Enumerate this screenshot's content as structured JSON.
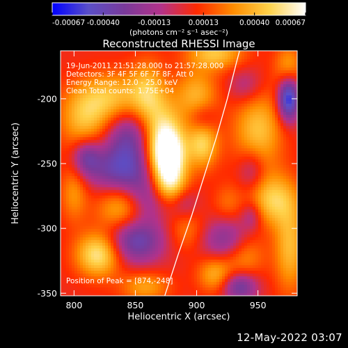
{
  "chart_data": {
    "type": "heatmap",
    "title": "Reconstructed RHESSI Image",
    "xlabel": "Heliocentric X (arcsec)",
    "ylabel": "Heliocentric Y (arcsec)",
    "xlim": [
      789,
      982
    ],
    "ylim": [
      -352,
      -163
    ],
    "x_ticks": [
      800,
      850,
      900,
      950
    ],
    "x_tick_labels": [
      "800",
      "850",
      "900",
      "950"
    ],
    "y_ticks": [
      -200,
      -250,
      -300,
      -350
    ],
    "y_tick_labels": [
      "-200",
      "-250",
      "-300",
      "-350"
    ],
    "colorbar": {
      "range": [
        -0.00067,
        0.00067
      ],
      "tick_values": [
        -0.00067,
        -0.0004,
        -0.00013,
        0.00013,
        0.0004,
        0.00067
      ],
      "tick_labels": [
        "-0.00067",
        "-0.00040",
        "-0.00013",
        "0.00013",
        "0.00040",
        "0.00067"
      ],
      "units_label": "(photons cm⁻² s⁻¹ asec⁻²)",
      "colors": [
        "#0000ff",
        "#5a4fc8",
        "#7a3a9a",
        "#b2328a",
        "#ff2a00",
        "#ff8c00",
        "#ffd24a",
        "#ffffff"
      ]
    },
    "annotations": [
      "19-Jun-2011 21:51:28.000 to 21:57:28.000",
      "Detectors: 3F 4F 5F 6F 7F 8F, Att 0",
      "Energy Range: 12.0 - 25.0 keV",
      "Clean     Total counts: 1.75E+04"
    ],
    "peak_label": "Position of Peak = [874,-248]",
    "peak": [
      874,
      -248
    ],
    "limb_curve": [
      [
        874,
        -352
      ],
      [
        885,
        -320
      ],
      [
        896,
        -290
      ],
      [
        906,
        -260
      ],
      [
        916,
        -230
      ],
      [
        925,
        -200
      ],
      [
        933,
        -170
      ],
      [
        935,
        -163
      ]
    ],
    "blobs": [
      {
        "x": 877,
        "y": -248,
        "value": 0.00067,
        "sx": 10,
        "sy": 17
      },
      {
        "x": 872,
        "y": -230,
        "value": 0.0004,
        "sx": 12,
        "sy": 20
      },
      {
        "x": 879,
        "y": -268,
        "value": 0.00022,
        "sx": 11,
        "sy": 9
      },
      {
        "x": 832,
        "y": -200,
        "value": 0.0004,
        "sx": 22,
        "sy": 14
      },
      {
        "x": 808,
        "y": -218,
        "value": 0.0003,
        "sx": 14,
        "sy": 16
      },
      {
        "x": 860,
        "y": -195,
        "value": 0.00028,
        "sx": 10,
        "sy": 18
      },
      {
        "x": 905,
        "y": -235,
        "value": 0.00042,
        "sx": 9,
        "sy": 13
      },
      {
        "x": 900,
        "y": -197,
        "value": 0.00032,
        "sx": 12,
        "sy": 14
      },
      {
        "x": 915,
        "y": -165,
        "value": 0.00038,
        "sx": 16,
        "sy": 9
      },
      {
        "x": 950,
        "y": -225,
        "value": 0.00038,
        "sx": 14,
        "sy": 22
      },
      {
        "x": 962,
        "y": -278,
        "value": 0.0004,
        "sx": 14,
        "sy": 14
      },
      {
        "x": 976,
        "y": -315,
        "value": 0.00035,
        "sx": 9,
        "sy": 24
      },
      {
        "x": 938,
        "y": -320,
        "value": 0.0003,
        "sx": 12,
        "sy": 12
      },
      {
        "x": 915,
        "y": -335,
        "value": 0.00032,
        "sx": 10,
        "sy": 10
      },
      {
        "x": 820,
        "y": -320,
        "value": 0.00052,
        "sx": 13,
        "sy": 12
      },
      {
        "x": 838,
        "y": -285,
        "value": 0.00032,
        "sx": 14,
        "sy": 12
      },
      {
        "x": 800,
        "y": -272,
        "value": 0.00025,
        "sx": 8,
        "sy": 16
      },
      {
        "x": 858,
        "y": -345,
        "value": 0.00028,
        "sx": 14,
        "sy": 8
      },
      {
        "x": 892,
        "y": -300,
        "value": 0.0002,
        "sx": 10,
        "sy": 12
      },
      {
        "x": 925,
        "y": -280,
        "value": 0.00015,
        "sx": 8,
        "sy": 10
      },
      {
        "x": 975,
        "y": -175,
        "value": 0.00028,
        "sx": 8,
        "sy": 12
      },
      {
        "x": 975,
        "y": -200,
        "value": -0.00067,
        "sx": 6,
        "sy": 12
      },
      {
        "x": 845,
        "y": -230,
        "value": -0.0004,
        "sx": 14,
        "sy": 18
      },
      {
        "x": 835,
        "y": -255,
        "value": -0.00035,
        "sx": 18,
        "sy": 12
      },
      {
        "x": 860,
        "y": -275,
        "value": -0.0003,
        "sx": 12,
        "sy": 14
      },
      {
        "x": 850,
        "y": -310,
        "value": -0.00045,
        "sx": 16,
        "sy": 12
      },
      {
        "x": 810,
        "y": -245,
        "value": -0.00035,
        "sx": 8,
        "sy": 10
      },
      {
        "x": 925,
        "y": -310,
        "value": -0.00035,
        "sx": 14,
        "sy": 12
      },
      {
        "x": 945,
        "y": -255,
        "value": -0.00025,
        "sx": 8,
        "sy": 12
      },
      {
        "x": 890,
        "y": -280,
        "value": -0.0002,
        "sx": 8,
        "sy": 10
      },
      {
        "x": 905,
        "y": -215,
        "value": -0.0002,
        "sx": 8,
        "sy": 8
      },
      {
        "x": 940,
        "y": -190,
        "value": -0.0002,
        "sx": 10,
        "sy": 10
      },
      {
        "x": 935,
        "y": -345,
        "value": -0.0004,
        "sx": 10,
        "sy": 8
      },
      {
        "x": 945,
        "y": -290,
        "value": -0.00022,
        "sx": 6,
        "sy": 8
      }
    ]
  },
  "footer": {
    "timestamp": "12-May-2022 03:07"
  }
}
